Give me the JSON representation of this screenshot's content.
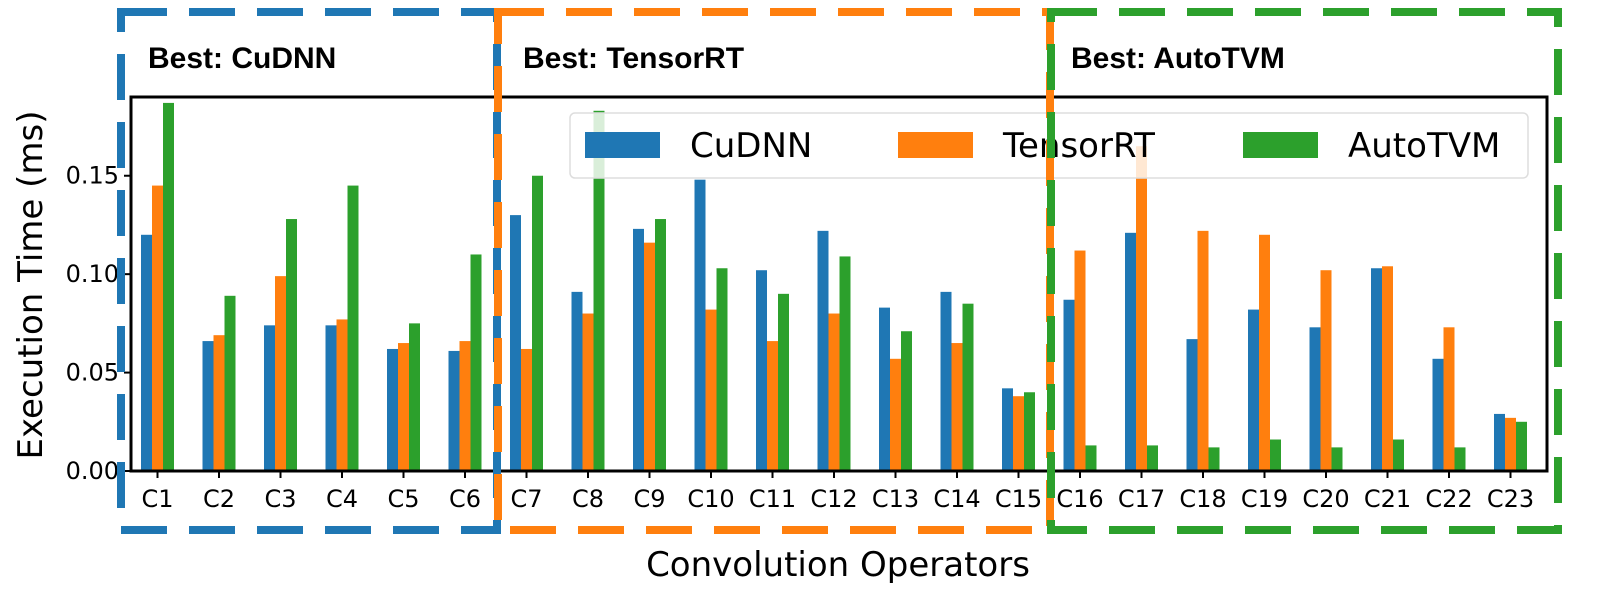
{
  "chart_data": {
    "type": "bar",
    "title": "",
    "xlabel": "Convolution Operators",
    "ylabel": "Execution Time (ms)",
    "ylim": [
      0,
      0.19
    ],
    "yticks": [
      "0.00",
      "0.05",
      "0.10",
      "0.15"
    ],
    "categories": [
      "C1",
      "C2",
      "C3",
      "C4",
      "C5",
      "C6",
      "C7",
      "C8",
      "C9",
      "C10",
      "C11",
      "C12",
      "C13",
      "C14",
      "C15",
      "C16",
      "C17",
      "C18",
      "C19",
      "C20",
      "C21",
      "C22",
      "C23"
    ],
    "series": [
      {
        "name": "CuDNN",
        "color": "#1f77b4",
        "values": [
          0.12,
          0.066,
          0.074,
          0.074,
          0.062,
          0.061,
          0.13,
          0.091,
          0.123,
          0.148,
          0.102,
          0.122,
          0.083,
          0.091,
          0.042,
          0.087,
          0.121,
          0.067,
          0.082,
          0.073,
          0.103,
          0.057,
          0.029
        ]
      },
      {
        "name": "TensorRT",
        "color": "#ff7f0e",
        "values": [
          0.145,
          0.069,
          0.099,
          0.077,
          0.065,
          0.066,
          0.062,
          0.08,
          0.116,
          0.082,
          0.066,
          0.08,
          0.057,
          0.065,
          0.038,
          0.112,
          0.165,
          0.122,
          0.12,
          0.102,
          0.104,
          0.073,
          0.027
        ]
      },
      {
        "name": "AutoTVM",
        "color": "#2ca02c",
        "values": [
          0.187,
          0.089,
          0.128,
          0.145,
          0.075,
          0.11,
          0.15,
          0.183,
          0.128,
          0.103,
          0.09,
          0.109,
          0.071,
          0.085,
          0.04,
          0.013,
          0.013,
          0.012,
          0.016,
          0.012,
          0.016,
          0.012,
          0.025
        ]
      }
    ],
    "legend": {
      "placement": "top-right",
      "items": [
        "CuDNN",
        "TensorRT",
        "AutoTVM"
      ]
    },
    "groups": [
      {
        "label": "Best: CuDNN",
        "color": "#1f77b4",
        "from": "C1",
        "to": "C6"
      },
      {
        "label": "Best: TensorRT",
        "color": "#ff7f0e",
        "from": "C7",
        "to": "C15"
      },
      {
        "label": "Best: AutoTVM",
        "color": "#2ca02c",
        "from": "C16",
        "to": "C23"
      }
    ],
    "grid": false
  }
}
